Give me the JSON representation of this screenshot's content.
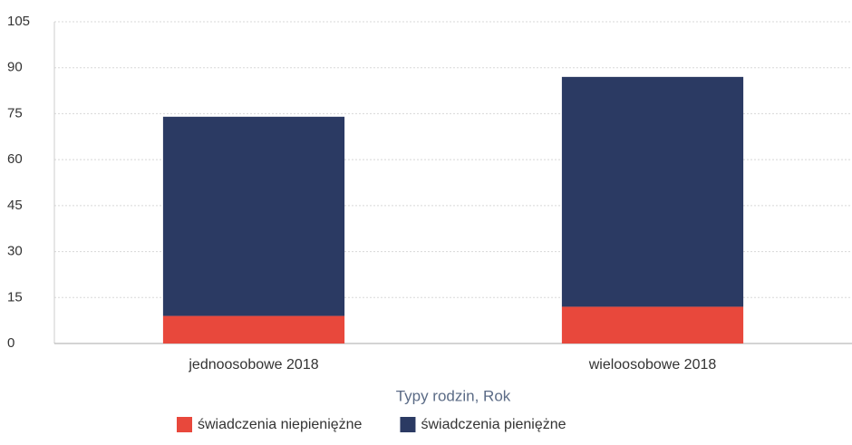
{
  "chart_data": {
    "type": "stacked_bar",
    "categories": [
      "jednoosobowe 2018",
      "wieloosobowe 2018"
    ],
    "series": [
      {
        "name": "świadczenia niepieniężne",
        "color": "#e8483c",
        "values": [
          9,
          12
        ]
      },
      {
        "name": "świadczenia pieniężne",
        "color": "#2b3a63",
        "values": [
          65,
          75
        ]
      }
    ],
    "x_label": "Typy rodzin, Rok",
    "ylim": [
      0,
      105
    ],
    "yticks": [
      0,
      15,
      30,
      45,
      60,
      75,
      90,
      105
    ],
    "grid": true,
    "legend": "bottom"
  }
}
